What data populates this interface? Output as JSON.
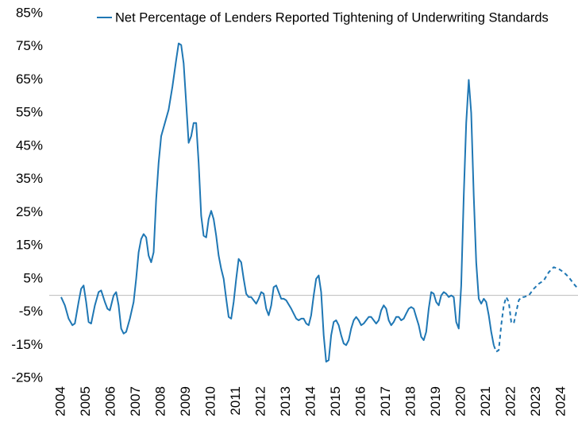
{
  "chart_data": {
    "type": "line",
    "series": [
      {
        "name": "Net Percentage of Lenders Reported Tightening of Underwriting Standards",
        "color": "#1f77b4",
        "dash": false,
        "x": [
          2004.0,
          2004.15,
          2004.3,
          2004.45,
          2004.55,
          2004.7,
          2004.8,
          2004.9,
          2005.0,
          2005.1,
          2005.2,
          2005.35,
          2005.5,
          2005.6,
          2005.75,
          2005.85,
          2005.95,
          2006.1,
          2006.2,
          2006.3,
          2006.4,
          2006.5,
          2006.6,
          2006.75,
          2006.9,
          2007.0,
          2007.1,
          2007.2,
          2007.3,
          2007.4,
          2007.5,
          2007.6,
          2007.7,
          2007.8,
          2007.9,
          2008.0,
          2008.15,
          2008.3,
          2008.45,
          2008.6,
          2008.7,
          2008.8,
          2008.9,
          2009.0,
          2009.1,
          2009.2,
          2009.3,
          2009.4,
          2009.5,
          2009.6,
          2009.7,
          2009.8,
          2009.9,
          2010.0,
          2010.1,
          2010.2,
          2010.3,
          2010.4,
          2010.5,
          2010.6,
          2010.7,
          2010.8,
          2010.9,
          2011.0,
          2011.1,
          2011.2,
          2011.3,
          2011.4,
          2011.5,
          2011.6,
          2011.7,
          2011.8,
          2011.9,
          2012.0,
          2012.1,
          2012.2,
          2012.3,
          2012.4,
          2012.5,
          2012.6,
          2012.7,
          2012.8,
          2012.9,
          2013.0,
          2013.2,
          2013.4,
          2013.5,
          2013.6,
          2013.7,
          2013.8,
          2013.9,
          2014.0,
          2014.1,
          2014.2,
          2014.3,
          2014.4,
          2014.5,
          2014.6,
          2014.7,
          2014.8,
          2014.9,
          2015.0,
          2015.1,
          2015.2,
          2015.3,
          2015.4,
          2015.5,
          2015.6,
          2015.7,
          2015.8,
          2015.9,
          2016.0,
          2016.1,
          2016.2,
          2016.3,
          2016.4,
          2016.5,
          2016.6,
          2016.7,
          2016.8,
          2016.9,
          2017.0,
          2017.1,
          2017.2,
          2017.3,
          2017.4,
          2017.5,
          2017.6,
          2017.7,
          2017.8,
          2017.9,
          2018.0,
          2018.1,
          2018.2,
          2018.3,
          2018.4,
          2018.5,
          2018.6,
          2018.7,
          2018.8,
          2018.9,
          2019.0,
          2019.1,
          2019.2,
          2019.3,
          2019.4,
          2019.5,
          2019.6,
          2019.7,
          2019.8,
          2019.9,
          2020.0,
          2020.1,
          2020.2,
          2020.3,
          2020.4,
          2020.5,
          2020.6,
          2020.7,
          2020.8,
          2020.9,
          2021.0,
          2021.1,
          2021.2,
          2021.3
        ],
        "values": [
          -0.5,
          -3,
          -7,
          -9,
          -8.5,
          -2,
          2,
          3,
          -2,
          -8,
          -8.5,
          -3,
          1,
          1.5,
          -2,
          -4,
          -4.5,
          0,
          1,
          -3,
          -10,
          -11.5,
          -11,
          -7,
          -2,
          5,
          13,
          17,
          18.5,
          17.5,
          12,
          10,
          13,
          29,
          40,
          48,
          52,
          56,
          63,
          71,
          76,
          75.5,
          70,
          58,
          46,
          48,
          52,
          52,
          40,
          24,
          18,
          17.5,
          23,
          25.5,
          23,
          18,
          12,
          8,
          5,
          -1,
          -6.5,
          -7,
          -2,
          5,
          11,
          10,
          5,
          0.5,
          -0.5,
          -0.5,
          -1.5,
          -2.5,
          -1,
          1,
          0.5,
          -4,
          -6,
          -3,
          2.5,
          3,
          1,
          -1,
          -1,
          -1.5,
          -4,
          -7,
          -7.5,
          -7,
          -7,
          -8.5,
          -9,
          -6,
          0,
          5,
          6,
          1,
          -12,
          -20,
          -19.5,
          -12,
          -8,
          -7.5,
          -9,
          -12,
          -14.5,
          -15,
          -13.5,
          -10,
          -7.5,
          -6.5,
          -7.5,
          -9,
          -8.5,
          -7.5,
          -6.5,
          -6.5,
          -7.5,
          -8.5,
          -7.5,
          -4.5,
          -3,
          -4,
          -7.5,
          -9,
          -8,
          -6.5,
          -6.5,
          -7.5,
          -7,
          -5.5,
          -4,
          -3.5,
          -4,
          -6.5,
          -9,
          -12.5,
          -13.5,
          -11,
          -4,
          1,
          0.5,
          -2,
          -3,
          0,
          1,
          0.5,
          -0.5,
          0,
          -0.5,
          -8,
          -10,
          3,
          30,
          52,
          65,
          55,
          30,
          10,
          -1,
          -2.5,
          -1,
          -2,
          -6,
          -11,
          -15
        ]
      },
      {
        "color": "#1f77b4",
        "dash": true,
        "x": [
          2021.3,
          2021.4,
          2021.5,
          2021.6,
          2021.7,
          2021.8,
          2021.9,
          2022.0,
          2022.1,
          2022.2,
          2022.3,
          2022.4,
          2022.5,
          2022.7,
          2022.9,
          2023.1,
          2023.3,
          2023.5,
          2023.7,
          2023.9,
          2024.1,
          2024.3,
          2024.5,
          2024.67
        ],
        "values": [
          -15,
          -17,
          -16.5,
          -9,
          -3,
          -0.5,
          -2,
          -8,
          -8.5,
          -5,
          -1.5,
          -0.5,
          -0.5,
          0,
          2,
          3.5,
          4.5,
          7,
          8.5,
          8,
          7,
          5.5,
          3.5,
          2
        ]
      }
    ],
    "xlim": [
      2004,
      2024.67
    ],
    "xticks": [
      2004,
      2005,
      2006,
      2007,
      2008,
      2009,
      2010,
      2011,
      2012,
      2013,
      2014,
      2015,
      2016,
      2017,
      2018,
      2019,
      2020,
      2021,
      2022,
      2023,
      2024
    ],
    "ylim": [
      -25,
      85
    ],
    "yticks": [
      {
        "value": -25,
        "label": "-25%"
      },
      {
        "value": -15,
        "label": "-15%"
      },
      {
        "value": -5,
        "label": "-5%"
      },
      {
        "value": 5,
        "label": "5%"
      },
      {
        "value": 15,
        "label": "15%"
      },
      {
        "value": 25,
        "label": "25%"
      },
      {
        "value": 35,
        "label": "35%"
      },
      {
        "value": 45,
        "label": "45%"
      },
      {
        "value": 55,
        "label": "55%"
      },
      {
        "value": 65,
        "label": "65%"
      },
      {
        "value": 75,
        "label": "75%"
      },
      {
        "value": 85,
        "label": "85%"
      }
    ],
    "grid": false
  }
}
